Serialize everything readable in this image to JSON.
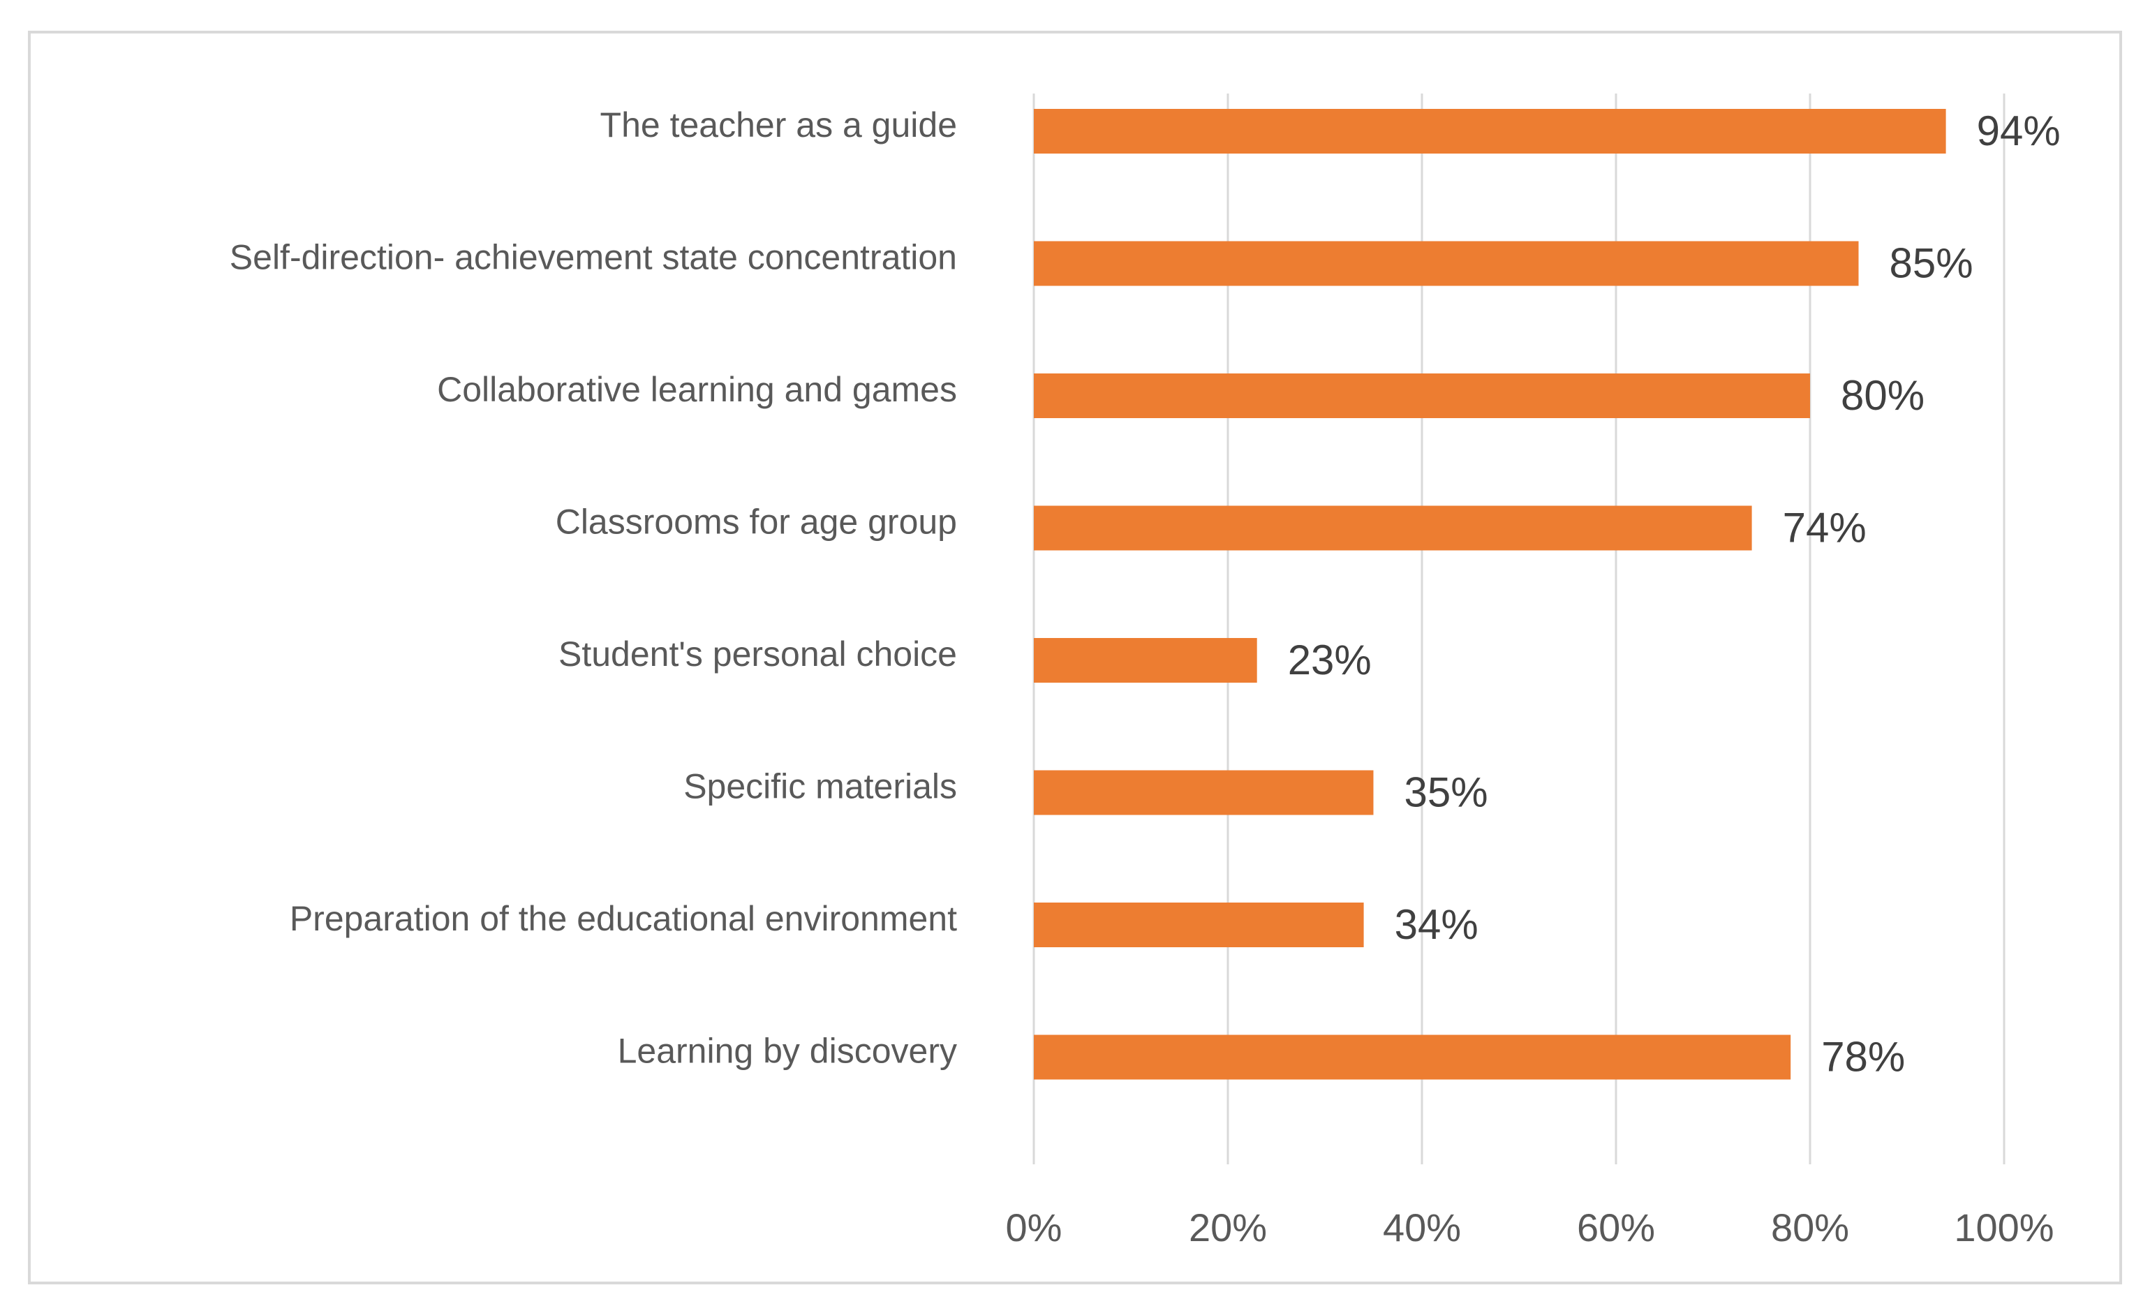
{
  "chart_data": {
    "type": "bar",
    "orientation": "horizontal",
    "categories": [
      "The teacher as a guide",
      "Self-direction- achievement state concentration",
      "Collaborative learning and games",
      "Classrooms for age group",
      "Student's personal choice",
      "Specific materials",
      "Preparation of the educational environment",
      "Learning by discovery"
    ],
    "values": [
      94,
      85,
      80,
      74,
      23,
      35,
      34,
      78
    ],
    "data_labels": [
      "94%",
      "85%",
      "80%",
      "74%",
      "23%",
      "35%",
      "34%",
      "78%"
    ],
    "xlim": [
      0,
      100
    ],
    "x_ticks": [
      "0%",
      "20%",
      "40%",
      "60%",
      "80%",
      "100%"
    ],
    "grid": "vertical",
    "legend": "none",
    "bar_color": "#ED7D31",
    "grid_color": "#d9d9d9"
  }
}
